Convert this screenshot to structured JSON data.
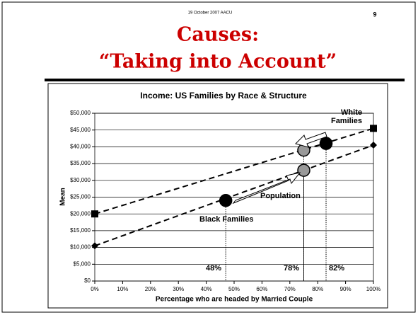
{
  "header": {
    "date": "19 October 2007 AACU",
    "page": "9",
    "title_lines": [
      "Causes:",
      "“Taking into Account”"
    ]
  },
  "chart_data": {
    "type": "scatter",
    "title": "Income: US Families by Race & Structure",
    "xlabel": "Percentage who are headed by Married Couple",
    "ylabel": "Mean",
    "xlim": [
      0,
      100
    ],
    "ylim": [
      0,
      50000
    ],
    "xticks": [
      {
        "value": 0,
        "label": "0%"
      },
      {
        "value": 10,
        "label": "10%"
      },
      {
        "value": 20,
        "label": "20%"
      },
      {
        "value": 30,
        "label": "30%"
      },
      {
        "value": 40,
        "label": "40%"
      },
      {
        "value": 50,
        "label": "50%"
      },
      {
        "value": 60,
        "label": "60%"
      },
      {
        "value": 70,
        "label": "70%"
      },
      {
        "value": 80,
        "label": "80%"
      },
      {
        "value": 90,
        "label": "90%"
      },
      {
        "value": 100,
        "label": "100%"
      }
    ],
    "yticks": [
      {
        "value": 0,
        "label": "$0"
      },
      {
        "value": 5000,
        "label": "$5,000"
      },
      {
        "value": 10000,
        "label": "$10,000"
      },
      {
        "value": 15000,
        "label": "$15,000"
      },
      {
        "value": 20000,
        "label": "$20,000"
      },
      {
        "value": 25000,
        "label": "$25,000"
      },
      {
        "value": 30000,
        "label": "$30,000"
      },
      {
        "value": 35000,
        "label": "$35,000"
      },
      {
        "value": 40000,
        "label": "$40,000"
      },
      {
        "value": 45000,
        "label": "$45,000"
      },
      {
        "value": 50000,
        "label": "$50,000"
      }
    ],
    "grid": true,
    "lines": [
      {
        "x": [
          0,
          100
        ],
        "values": [
          20000,
          45500
        ],
        "marker": "square",
        "color": "#000000"
      },
      {
        "x": [
          0,
          100
        ],
        "values": [
          10500,
          40500
        ],
        "marker": "diamond",
        "color": "#000000"
      }
    ],
    "points": {
      "x": [
        47,
        75,
        75,
        83
      ],
      "values": [
        24000,
        39000,
        33000,
        41000
      ],
      "colors": [
        "#000000",
        "#999999",
        "#999999",
        "#000000"
      ]
    },
    "drop_labels": [
      "48%",
      "78%",
      "82%"
    ],
    "annotations": [
      "White Families",
      "Population",
      "Black Families"
    ]
  }
}
